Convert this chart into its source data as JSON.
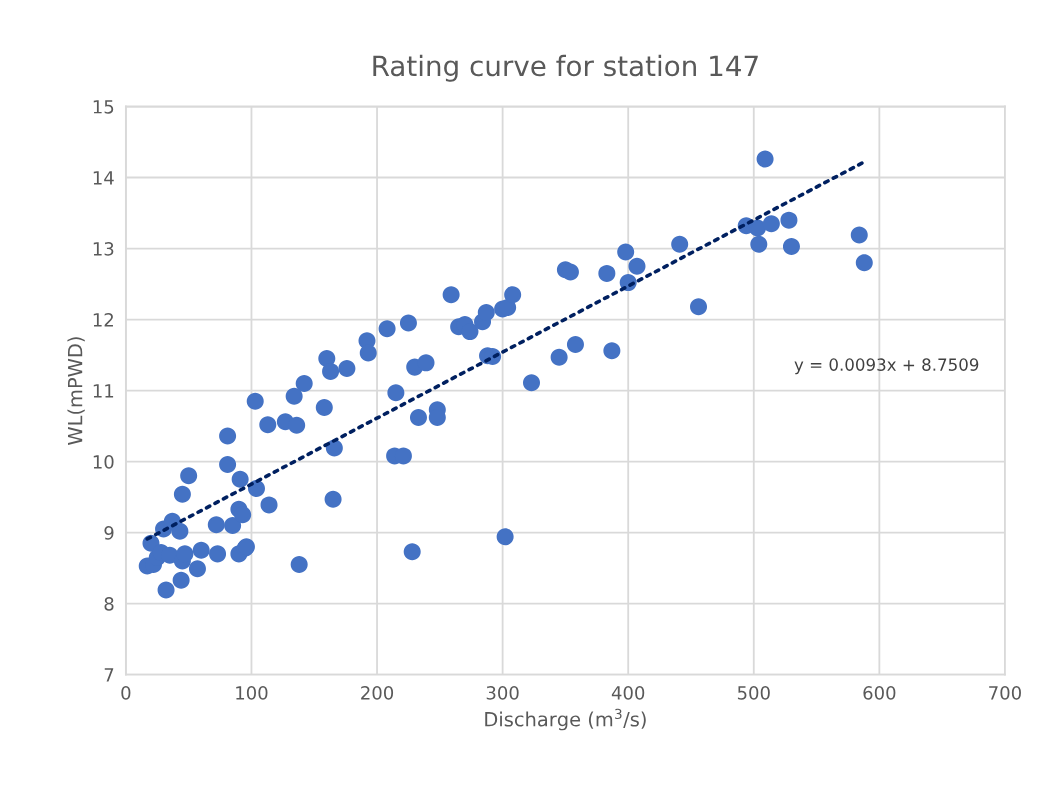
{
  "chart_data": {
    "type": "scatter",
    "title": "Rating curve for station 147",
    "xlabel": "Discharge (m$^{3}$/s)",
    "ylabel": "WL(mPWD)",
    "xlim": [
      0,
      700
    ],
    "xticks": [
      0,
      100,
      200,
      300,
      400,
      500,
      600,
      700
    ],
    "ylim": [
      7,
      15
    ],
    "yticks": [
      7,
      8,
      9,
      10,
      11,
      12,
      13,
      14,
      15
    ],
    "grid": true,
    "marker": "circle",
    "annotations": [
      "y = 0.0093x + 8.7509"
    ],
    "series": [
      {
        "color": "#4472c4",
        "x": [
          17,
          20,
          22,
          25,
          28,
          30,
          32,
          35,
          37,
          43,
          44,
          45,
          45,
          47,
          50,
          57,
          60,
          72,
          73,
          81,
          81,
          85,
          90,
          90,
          91,
          93,
          95,
          96,
          103,
          104,
          113,
          114,
          127,
          134,
          136,
          138,
          142,
          158,
          160,
          163,
          165,
          166,
          176,
          192,
          193,
          208,
          214,
          215,
          221,
          225,
          228,
          230,
          233,
          239,
          248,
          248,
          259,
          265,
          270,
          274,
          284,
          287,
          288,
          292,
          300,
          302,
          304,
          308,
          323,
          345,
          350,
          354,
          358,
          383,
          387,
          398,
          400,
          407,
          441,
          456,
          494,
          503,
          504,
          509,
          514,
          528,
          530,
          584,
          588
        ],
        "values": [
          8.53,
          8.85,
          8.55,
          8.65,
          8.72,
          9.05,
          8.19,
          8.68,
          9.16,
          9.02,
          8.33,
          8.6,
          9.54,
          8.7,
          9.8,
          8.49,
          8.75,
          9.11,
          8.7,
          10.36,
          9.96,
          9.1,
          8.7,
          9.33,
          9.75,
          9.25,
          8.78,
          8.8,
          10.85,
          9.62,
          10.52,
          9.39,
          10.56,
          10.92,
          10.51,
          8.55,
          11.1,
          10.76,
          11.45,
          11.27,
          9.47,
          10.19,
          11.31,
          11.7,
          11.53,
          11.87,
          10.08,
          10.97,
          10.08,
          11.95,
          8.73,
          11.33,
          10.62,
          11.39,
          10.73,
          10.62,
          12.35,
          11.9,
          11.93,
          11.83,
          11.97,
          12.1,
          11.49,
          11.48,
          12.15,
          8.94,
          12.17,
          12.35,
          11.11,
          11.47,
          12.7,
          12.67,
          11.65,
          12.65,
          11.56,
          12.95,
          12.52,
          12.75,
          13.06,
          12.18,
          13.32,
          13.29,
          13.06,
          14.26,
          13.35,
          13.4,
          13.03,
          13.19,
          12.8
        ]
      },
      {
        "type": "line",
        "color": "#002060",
        "line_style": "dotted",
        "marker": "none",
        "x": [
          17,
          588
        ],
        "values": [
          8.91,
          14.22
        ]
      }
    ]
  }
}
